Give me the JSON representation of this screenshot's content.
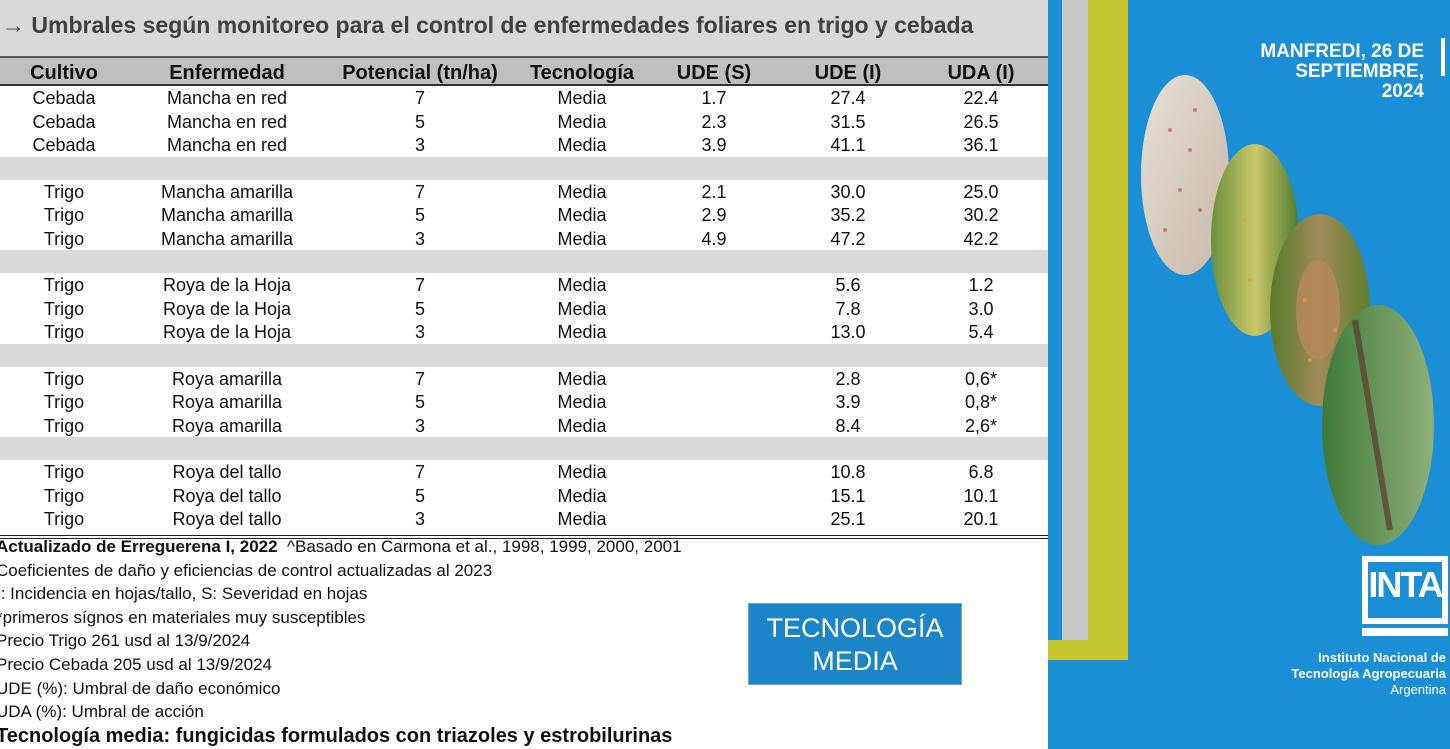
{
  "title": "→ Umbrales según monitoreo para el control de enfermedades foliares en trigo y cebada",
  "table": {
    "headers": [
      "Cultivo",
      "Enfermedad",
      "Potencial (tn/ha)",
      "Tecnología",
      "UDE (S)",
      "UDE (I)",
      "UDA (I)"
    ],
    "groups": [
      [
        [
          "Cebada",
          "Mancha en red",
          "7",
          "Media",
          "1.7",
          "27.4",
          "22.4"
        ],
        [
          "Cebada",
          "Mancha en red",
          "5",
          "Media",
          "2.3",
          "31.5",
          "26.5"
        ],
        [
          "Cebada",
          "Mancha en red",
          "3",
          "Media",
          "3.9",
          "41.1",
          "36.1"
        ]
      ],
      [
        [
          "Trigo",
          "Mancha amarilla",
          "7",
          "Media",
          "2.1",
          "30.0",
          "25.0"
        ],
        [
          "Trigo",
          "Mancha amarilla",
          "5",
          "Media",
          "2.9",
          "35.2",
          "30.2"
        ],
        [
          "Trigo",
          "Mancha amarilla",
          "3",
          "Media",
          "4.9",
          "47.2",
          "42.2"
        ]
      ],
      [
        [
          "Trigo",
          "Roya de la Hoja",
          "7",
          "Media",
          "",
          "5.6",
          "1.2"
        ],
        [
          "Trigo",
          "Roya de la Hoja",
          "5",
          "Media",
          "",
          "7.8",
          "3.0"
        ],
        [
          "Trigo",
          "Roya de la Hoja",
          "3",
          "Media",
          "",
          "13.0",
          "5.4"
        ]
      ],
      [
        [
          "Trigo",
          "Roya amarilla",
          "7",
          "Media",
          "",
          "2.8",
          "0,6*"
        ],
        [
          "Trigo",
          "Roya amarilla",
          "5",
          "Media",
          "",
          "3.9",
          "0,8*"
        ],
        [
          "Trigo",
          "Roya amarilla",
          "3",
          "Media",
          "",
          "8.4",
          "2,6*"
        ]
      ],
      [
        [
          "Trigo",
          "Roya del tallo",
          "7",
          "Media",
          "",
          "10.8",
          "6.8"
        ],
        [
          "Trigo",
          "Roya del tallo",
          "5",
          "Media",
          "",
          "15.1",
          "10.1"
        ],
        [
          "Trigo",
          "Roya del tallo",
          "3",
          "Media",
          "",
          "25.1",
          "20.1"
        ]
      ]
    ]
  },
  "notes": {
    "source_bold": "Actualizado de Erreguerena I, 2022",
    "source_rest": "^Basado en Carmona et al., 1998, 1999, 2000, 2001",
    "line2": "Coeficientes de daño y eficiencias de control actualizadas al 2023",
    "line3": "I: Incidencia en hojas/tallo, S: Severidad en hojas",
    "line4": " *primeros sígnos en materiales muy susceptibles",
    "line5": "Precio Trigo 261 usd al 13/9/2024",
    "line6": "Precio Cebada 205 usd al 13/9/2024",
    "line7": "UDE (%): Umbral de daño económico",
    "line8": "UDA (%): Umbral de acción",
    "line9": "Tecnología media: fungicidas formulados con triazoles y estrobilurinas"
  },
  "tech_box": {
    "line1": "TECNOLOGÍA",
    "line2": "MEDIA"
  },
  "side": {
    "date_line1": "MANFREDI, 26 DE SEPTIEMBRE,",
    "date_line2": "2024",
    "logo": "INTA",
    "inst_line1": "Instituto Nacional de",
    "inst_line2": "Tecnología Agropecuaria",
    "inst_line3": "Argentina"
  },
  "colors": {
    "panel": "#1b8fd6",
    "olive": "#c6c730",
    "header_gray": "#bfbfbf",
    "sep_gray": "#d9d9d9",
    "box": "#1b86c7"
  }
}
